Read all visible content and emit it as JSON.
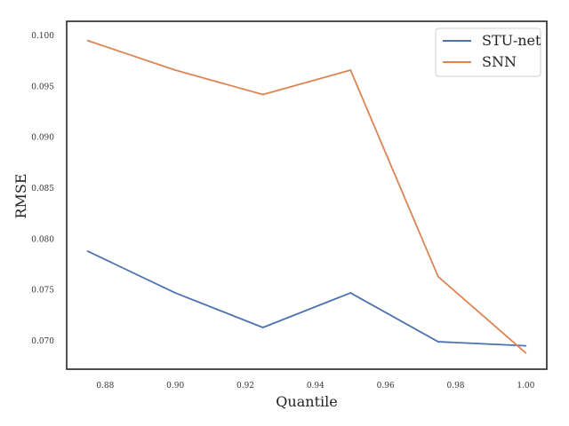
{
  "chart_data": {
    "type": "line",
    "xlabel": "Quantile",
    "ylabel": "RMSE",
    "xlim": [
      0.869,
      1.006
    ],
    "ylim": [
      0.0672,
      0.1014
    ],
    "x": [
      0.875,
      0.9,
      0.925,
      0.95,
      0.975,
      1.0
    ],
    "x_ticks": [
      0.88,
      0.9,
      0.92,
      0.94,
      0.96,
      0.98,
      1.0
    ],
    "x_tick_labels": [
      "0.88",
      "0.90",
      "0.92",
      "0.94",
      "0.96",
      "0.98",
      "1.00"
    ],
    "y_ticks": [
      0.07,
      0.075,
      0.08,
      0.085,
      0.09,
      0.095,
      0.1
    ],
    "y_tick_labels": [
      "0.070",
      "0.075",
      "0.080",
      "0.085",
      "0.090",
      "0.095",
      "0.100"
    ],
    "grid": false,
    "legend_position": "top-right",
    "series": [
      {
        "name": "STU-net",
        "color": "#4c72b0",
        "values": [
          0.0788,
          0.0747,
          0.0713,
          0.0747,
          0.0699,
          0.0695
        ]
      },
      {
        "name": "SNN",
        "color": "#dd8452",
        "values": [
          0.0995,
          0.0966,
          0.0942,
          0.0966,
          0.0763,
          0.0688
        ]
      }
    ]
  }
}
